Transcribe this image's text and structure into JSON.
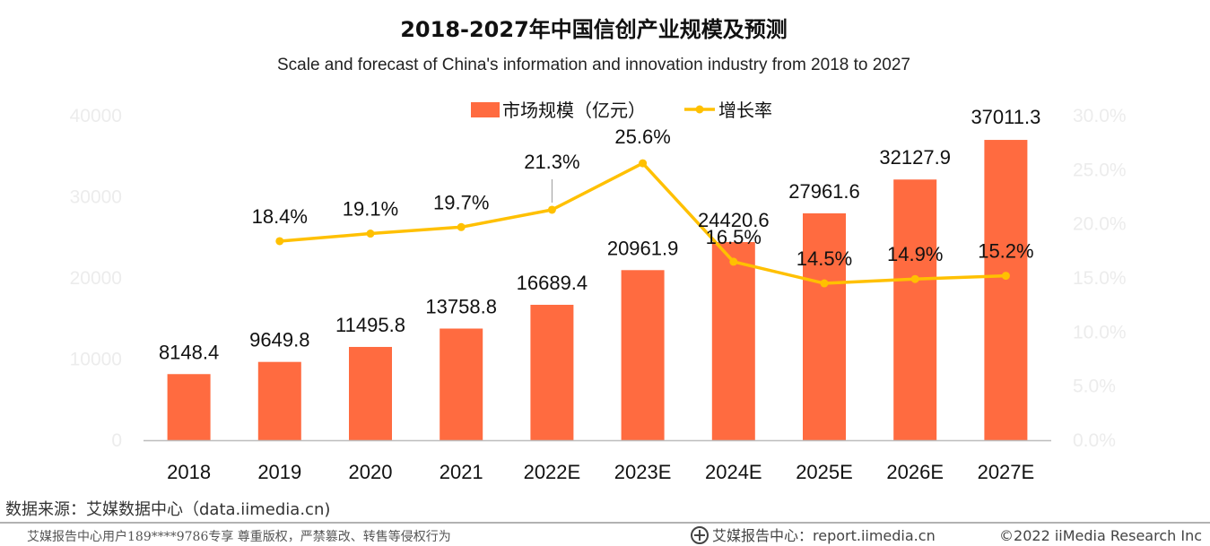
{
  "chart_data": {
    "type": "bar",
    "title": "2018-2027年中国信创产业规模及预测",
    "subtitle": "Scale and forecast of China's information and innovation industry from 2018 to 2027",
    "categories": [
      "2018",
      "2019",
      "2020",
      "2021",
      "2022E",
      "2023E",
      "2024E",
      "2025E",
      "2026E",
      "2027E"
    ],
    "series": [
      {
        "name": "市场规模（亿元）",
        "type": "bar",
        "axis": "left",
        "color": "#FF6B40",
        "values": [
          8148.4,
          9649.8,
          11495.8,
          13758.8,
          16689.4,
          20961.9,
          24420.6,
          27961.6,
          32127.9,
          37011.3
        ],
        "labels": [
          "8148.4",
          "9649.8",
          "11495.8",
          "13758.8",
          "16689.4",
          "20961.9",
          "24420.6",
          "27961.6",
          "32127.9",
          "37011.3"
        ]
      },
      {
        "name": "增长率",
        "type": "line",
        "axis": "right",
        "color": "#FFC000",
        "values": [
          null,
          18.4,
          19.1,
          19.7,
          21.3,
          25.6,
          16.5,
          14.5,
          14.9,
          15.2
        ],
        "labels": [
          null,
          "18.4%",
          "19.1%",
          "19.7%",
          "21.3%",
          "25.6%",
          "16.5%",
          "14.5%",
          "14.9%",
          "15.2%"
        ]
      }
    ],
    "y_left": {
      "min": 0,
      "max": 40000,
      "ticks": [
        "0",
        "10000",
        "20000",
        "30000",
        "40000"
      ]
    },
    "y_right": {
      "min": 0,
      "max": 30,
      "ticks": [
        "0.0%",
        "5.0%",
        "10.0%",
        "15.0%",
        "20.0%",
        "25.0%",
        "30.0%"
      ]
    },
    "legend_position": "top-center"
  },
  "source": "数据来源：艾媒数据中心（data.iimedia.cn)",
  "watermark_note": "艾媒报告中心用户189****9786专享 尊重版权，严禁篡改、转售等侵权行为",
  "footer": {
    "brand": "艾媒报告中心：report.iimedia.cn",
    "copyright": "©2022  iiMedia Research  Inc"
  }
}
